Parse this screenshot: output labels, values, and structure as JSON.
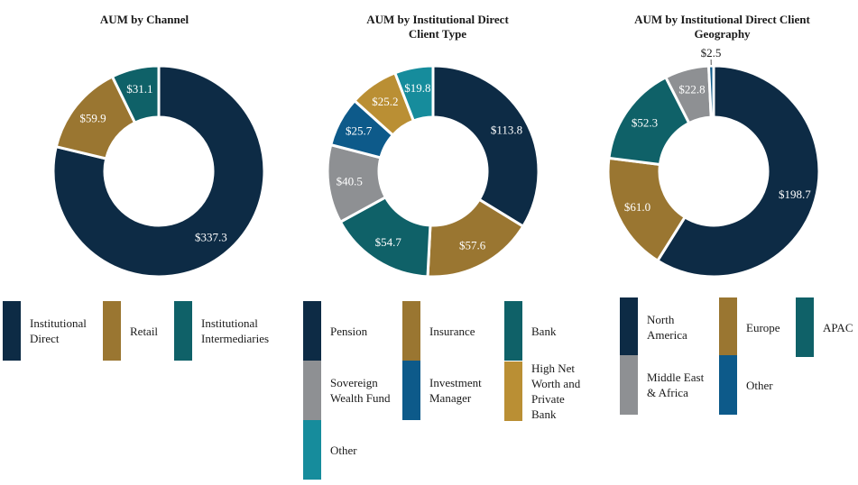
{
  "chart_data": [
    {
      "type": "pie",
      "title": "AUM by Channel",
      "categories": [
        "Institutional\nDirect",
        "Retail",
        "Institutional\nIntermediaries"
      ],
      "values": [
        337.3,
        59.9,
        31.1
      ],
      "value_labels": [
        "$337.3",
        "$59.9",
        "$31.1"
      ],
      "colors": [
        "#0d2b45",
        "#9a7631",
        "#0f6168"
      ]
    },
    {
      "type": "pie",
      "title": "AUM by Institutional Direct\nClient Type",
      "categories": [
        "Pension",
        "Insurance",
        "Bank",
        "Sovereign\nWealth Fund",
        "Investment\nManager",
        "High Net\nWorth and\nPrivate Bank",
        "Other"
      ],
      "values": [
        113.8,
        57.6,
        54.7,
        40.5,
        25.7,
        25.2,
        19.8
      ],
      "value_labels": [
        "$113.8",
        "$57.6",
        "$54.7",
        "$40.5",
        "$25.7",
        "$25.2",
        "$19.8"
      ],
      "colors": [
        "#0d2b45",
        "#9a7631",
        "#0f6168",
        "#8e9093",
        "#0d5a8a",
        "#ba8f34",
        "#168c9c"
      ]
    },
    {
      "type": "pie",
      "title": "AUM by Institutional Direct Client\nGeography",
      "categories": [
        "North\nAmerica",
        "Europe",
        "APAC",
        "Middle East\n& Africa",
        "Other"
      ],
      "values": [
        198.7,
        61.0,
        52.3,
        22.8,
        2.5
      ],
      "value_labels": [
        "$198.7",
        "$61.0",
        "$52.3",
        "$22.8",
        "$2.5"
      ],
      "colors": [
        "#0d2b45",
        "#9a7631",
        "#0f6168",
        "#8e9093",
        "#0d5a8a"
      ]
    }
  ]
}
